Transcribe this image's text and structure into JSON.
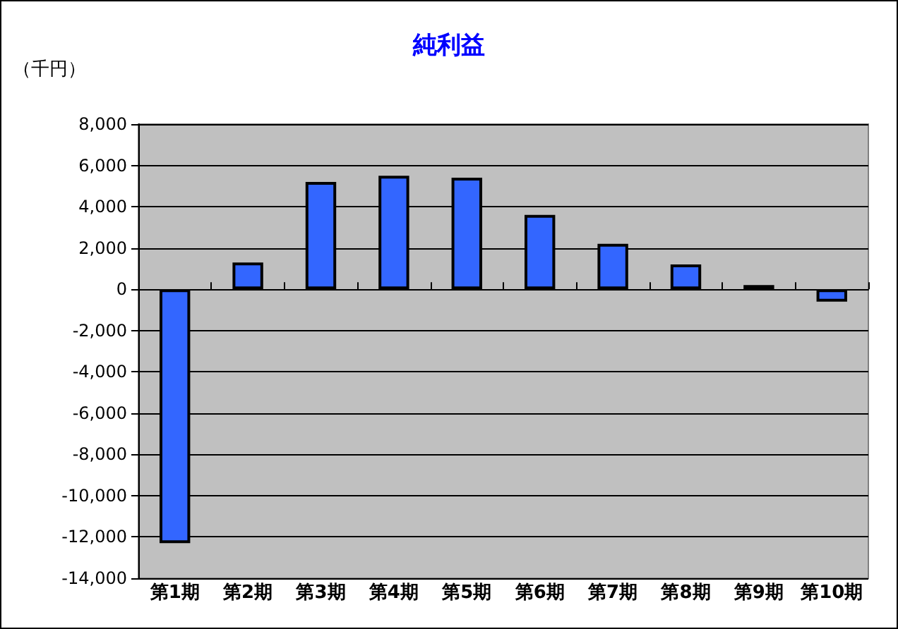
{
  "chart_data": {
    "type": "bar",
    "title": "純利益",
    "ylabel": "（千円）",
    "categories": [
      "第1期",
      "第2期",
      "第3期",
      "第4期",
      "第5期",
      "第6期",
      "第7期",
      "第8期",
      "第9期",
      "第10期"
    ],
    "values": [
      -12300,
      1300,
      5200,
      5500,
      5400,
      3600,
      2200,
      1200,
      200,
      -600
    ],
    "color": "#3366ff",
    "ylim": [
      -14000,
      8000
    ],
    "yticks": [
      {
        "value": -14000,
        "label": "-14,000"
      },
      {
        "value": -12000,
        "label": "-12,000"
      },
      {
        "value": -10000,
        "label": "-10,000"
      },
      {
        "value": -8000,
        "label": "-8,000"
      },
      {
        "value": -6000,
        "label": "-6,000"
      },
      {
        "value": -4000,
        "label": "-4,000"
      },
      {
        "value": -2000,
        "label": "-2,000"
      },
      {
        "value": 0,
        "label": "0"
      },
      {
        "value": 2000,
        "label": "2,000"
      },
      {
        "value": 4000,
        "label": "4,000"
      },
      {
        "value": 6000,
        "label": "6,000"
      },
      {
        "value": 8000,
        "label": "8,000"
      }
    ],
    "grid": "y"
  }
}
